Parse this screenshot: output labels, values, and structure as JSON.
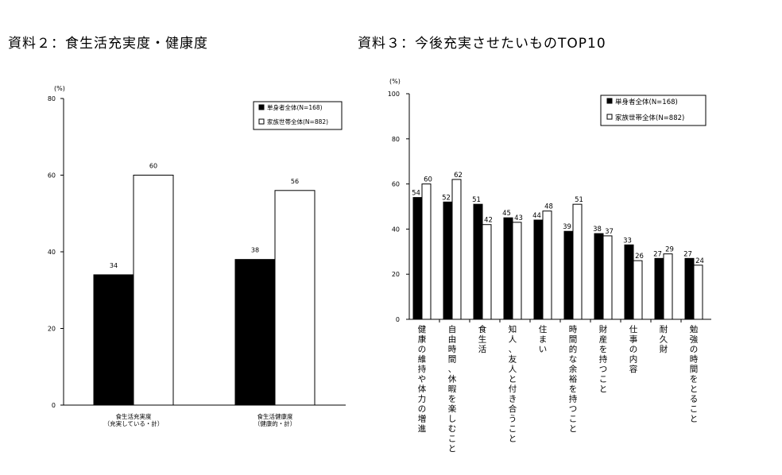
{
  "headings": {
    "left": "資料２：食生活充実度・健康度",
    "right": "資料３：今後充実させたいものTOP10"
  },
  "chart_data": [
    {
      "type": "bar",
      "title": "資料２：食生活充実度・健康度",
      "unit": "(%)",
      "ylim": [
        0,
        80
      ],
      "yticks": [
        0,
        20,
        40,
        60,
        80
      ],
      "legend_position": "top-right",
      "categories": [
        [
          "食生活充実度",
          "（充実している・計）"
        ],
        [
          "食生活健康度",
          "（健康的・計）"
        ]
      ],
      "series": [
        {
          "name": "単身者全体(N=168)",
          "color": "#000000",
          "values": [
            34,
            38
          ]
        },
        {
          "name": "家族世帯全体(N=882)",
          "color": "#ffffff",
          "values": [
            60,
            56
          ]
        }
      ]
    },
    {
      "type": "bar",
      "title": "資料３：今後充実させたいものTOP10",
      "unit": "(%)",
      "ylim": [
        0,
        100
      ],
      "yticks": [
        0,
        20,
        40,
        60,
        80,
        100
      ],
      "legend_position": "top-right",
      "categories": [
        "健康の維持や体力の増進",
        "自由時間、休暇を楽しむこと",
        "食生活",
        "知人、友人と付き合うこと",
        "住まい",
        "時間的な余裕を持つこと",
        "財産を持つこと",
        "仕事の内容",
        "耐久財",
        "勉強の時間をとること"
      ],
      "series": [
        {
          "name": "単身者全体(N=168)",
          "color": "#000000",
          "values": [
            54,
            52,
            51,
            45,
            44,
            39,
            38,
            33,
            27,
            27
          ]
        },
        {
          "name": "家族世帯全体(N=882)",
          "color": "#ffffff",
          "values": [
            60,
            62,
            42,
            43,
            48,
            51,
            37,
            26,
            29,
            24
          ]
        }
      ]
    }
  ]
}
